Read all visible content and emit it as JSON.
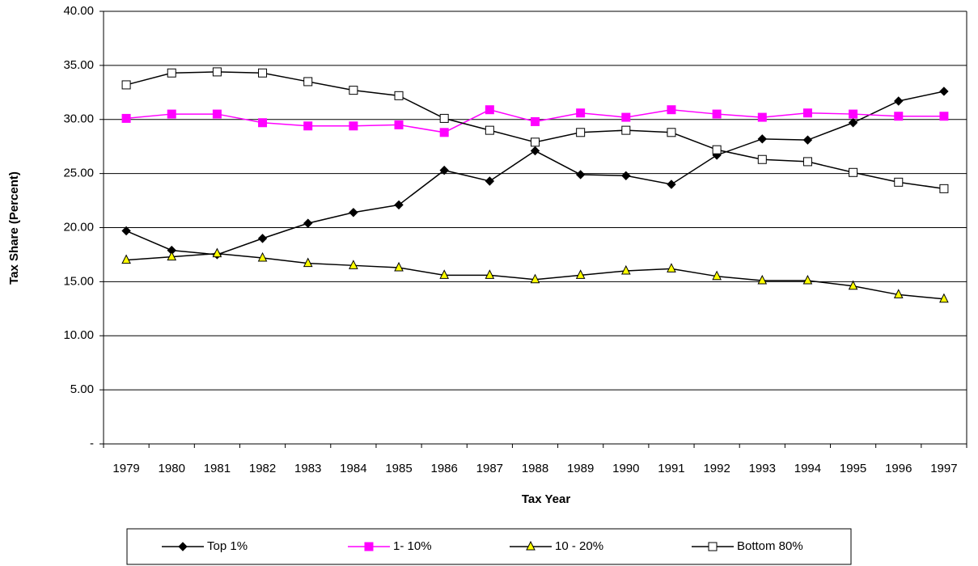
{
  "chart_data": {
    "type": "line",
    "x_label": "Tax Year",
    "y_label": "Tax Share (Percent)",
    "categories": [
      "1979",
      "1980",
      "1981",
      "1982",
      "1983",
      "1984",
      "1985",
      "1986",
      "1987",
      "1988",
      "1989",
      "1990",
      "1991",
      "1992",
      "1993",
      "1994",
      "1995",
      "1996",
      "1997"
    ],
    "ylim": [
      0,
      40
    ],
    "yticks": [
      {
        "value": 0,
        "label": "-"
      },
      {
        "value": 5,
        "label": "5.00"
      },
      {
        "value": 10,
        "label": "10.00"
      },
      {
        "value": 15,
        "label": "15.00"
      },
      {
        "value": 20,
        "label": "20.00"
      },
      {
        "value": 25,
        "label": "25.00"
      },
      {
        "value": 30,
        "label": "30.00"
      },
      {
        "value": 35,
        "label": "35.00"
      },
      {
        "value": 40,
        "label": "40.00"
      }
    ],
    "grid": true,
    "legend": "bottom",
    "series": [
      {
        "name": "Top 1%",
        "color": "#000000",
        "marker": "diamond",
        "marker_fill": "#000000",
        "values": [
          19.7,
          17.9,
          17.5,
          19.0,
          20.4,
          21.4,
          22.1,
          25.3,
          24.3,
          27.1,
          24.9,
          24.8,
          24.0,
          26.7,
          28.2,
          28.1,
          29.7,
          31.7,
          32.6
        ]
      },
      {
        "name": "1- 10%",
        "color": "#ff00ff",
        "marker": "square",
        "marker_fill": "#ff00ff",
        "values": [
          30.1,
          30.5,
          30.5,
          29.7,
          29.4,
          29.4,
          29.5,
          28.8,
          30.9,
          29.8,
          30.6,
          30.2,
          30.9,
          30.5,
          30.2,
          30.6,
          30.5,
          30.3,
          30.3
        ]
      },
      {
        "name": "10 - 20%",
        "color": "#000000",
        "marker": "triangle",
        "marker_fill": "#ffff00",
        "values": [
          17.0,
          17.3,
          17.6,
          17.2,
          16.7,
          16.5,
          16.3,
          15.6,
          15.6,
          15.2,
          15.6,
          16.0,
          16.2,
          15.5,
          15.1,
          15.1,
          14.6,
          13.8,
          13.4
        ]
      },
      {
        "name": "Bottom 80%",
        "color": "#000000",
        "marker": "square",
        "marker_fill": "#ffffff",
        "values": [
          33.2,
          34.3,
          34.4,
          34.3,
          33.5,
          32.7,
          32.2,
          30.1,
          29.0,
          27.9,
          28.8,
          29.0,
          28.8,
          27.2,
          26.3,
          26.1,
          25.1,
          24.2,
          23.6
        ]
      }
    ]
  }
}
